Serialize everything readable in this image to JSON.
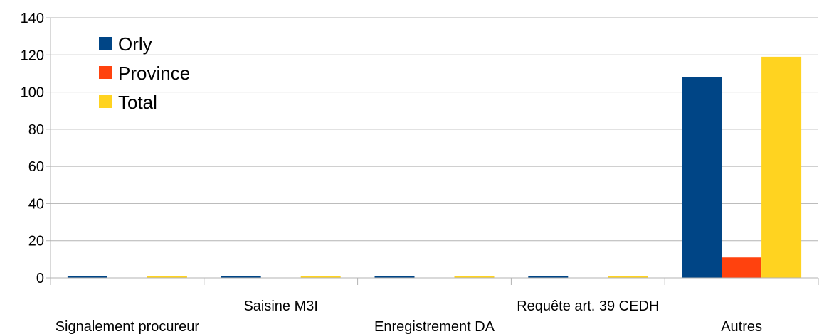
{
  "chart_data": {
    "type": "bar",
    "categories": [
      "Signalement procureur",
      "Saisine M3I",
      "Enregistrement DA",
      "Requête art. 39 CEDH",
      "Autres"
    ],
    "series": [
      {
        "name": "Orly",
        "color": "#004586",
        "values": [
          1,
          1,
          1,
          1,
          108
        ]
      },
      {
        "name": "Province",
        "color": "#ff420e",
        "values": [
          0,
          0,
          0,
          0,
          11
        ]
      },
      {
        "name": "Total",
        "color": "#ffd320",
        "values": [
          1,
          1,
          1,
          1,
          119
        ]
      }
    ],
    "title": "",
    "xlabel": "",
    "ylabel": "",
    "ylim": [
      0,
      140
    ],
    "yticks": [
      0,
      20,
      40,
      60,
      80,
      100,
      120,
      140
    ],
    "grid": true,
    "legend_position": "top-left"
  }
}
